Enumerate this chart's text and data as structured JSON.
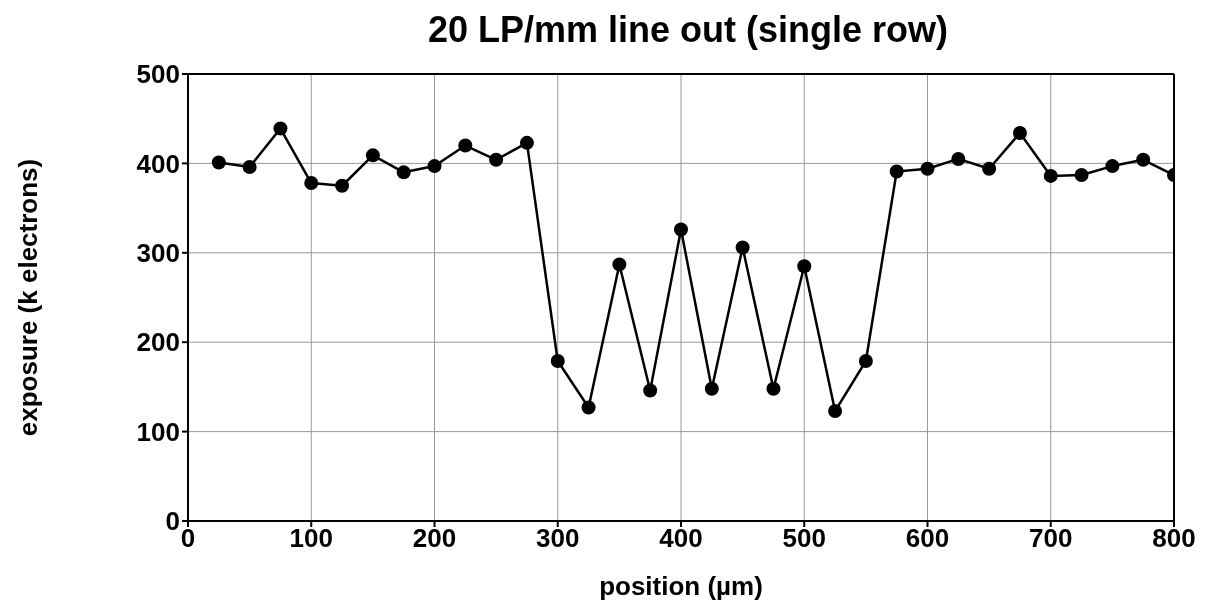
{
  "chart_data": {
    "type": "line",
    "title": "20 LP/mm line out (single row)",
    "xlabel": "position (µm)",
    "ylabel": "exposure (k electrons)",
    "x": [
      25,
      50,
      75,
      100,
      125,
      150,
      175,
      200,
      225,
      250,
      275,
      300,
      325,
      350,
      375,
      400,
      425,
      450,
      475,
      500,
      525,
      550,
      575,
      600,
      625,
      650,
      675,
      700,
      725,
      750,
      775,
      800
    ],
    "series": [
      {
        "color": "#000000",
        "values": [
          401,
          396,
          439,
          378,
          375,
          409,
          390,
          397,
          420,
          404,
          423,
          179,
          127,
          287,
          146,
          326,
          148,
          306,
          148,
          285,
          123,
          179,
          391,
          394,
          405,
          394,
          434,
          386,
          387,
          397,
          404,
          387
        ]
      }
    ],
    "xlim": [
      0,
      800
    ],
    "xticks": [
      0,
      100,
      200,
      300,
      400,
      500,
      600,
      700,
      800
    ],
    "ylim": [
      0,
      500
    ],
    "yticks": [
      0,
      100,
      200,
      300,
      400,
      500
    ],
    "grid": true,
    "marker": "circle",
    "line_style": "solid",
    "legend": false
  }
}
